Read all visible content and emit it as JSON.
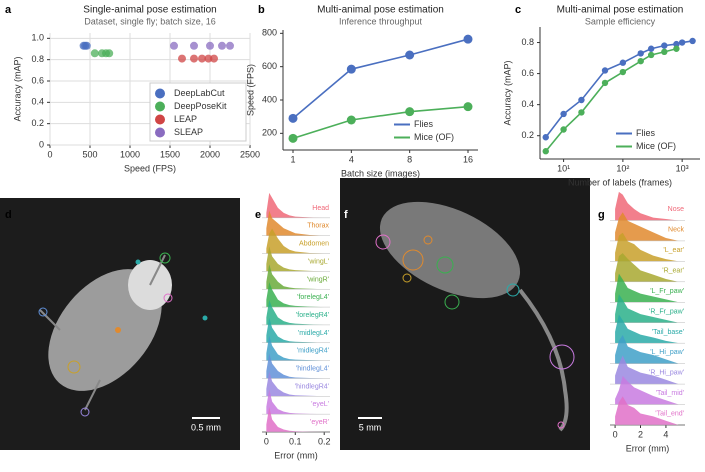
{
  "chart_data": [
    {
      "panel": "a",
      "type": "scatter",
      "title": "Single-animal pose estimation",
      "subtitle": "Dataset, single fly; batch size, 16",
      "x_label": "Speed (FPS)",
      "y_label": "Accuracy (mAP)",
      "xlim": [
        0,
        2500
      ],
      "xticks": [
        0,
        500,
        1000,
        1500,
        2000,
        2500
      ],
      "ylim": [
        0,
        1.05
      ],
      "yticks": [
        0,
        0.2,
        0.4,
        0.6,
        0.8,
        {
          "value": 1,
          "label": "1.0"
        }
      ],
      "grid": true,
      "legend": "lower right",
      "series": [
        {
          "name": "DeepLabCut",
          "color": "#4a6fc0",
          "x": [
            420,
            440,
            460
          ],
          "y": [
            0.93,
            0.93,
            0.93
          ]
        },
        {
          "name": "DeepPoseKit",
          "color": "#4caf5a",
          "x": [
            560,
            650,
            700,
            740
          ],
          "y": [
            0.86,
            0.86,
            0.86,
            0.86
          ]
        },
        {
          "name": "LEAP",
          "color": "#d04545",
          "x": [
            1650,
            1800,
            1900,
            1980,
            2050
          ],
          "y": [
            0.81,
            0.81,
            0.81,
            0.81,
            0.81
          ]
        },
        {
          "name": "SLEAP",
          "color": "#8a6cc0",
          "x": [
            1550,
            1800,
            2000,
            2150,
            2250
          ],
          "y": [
            0.93,
            0.93,
            0.93,
            0.93,
            0.93
          ]
        }
      ]
    },
    {
      "panel": "b",
      "type": "line",
      "title": "Multi-animal pose estimation",
      "subtitle": "Inference throughput",
      "x_label": "Batch size (images)",
      "y_label": "Speed (FPS)",
      "categories": [
        "1",
        "4",
        "8",
        "16"
      ],
      "ylim": [
        100,
        820
      ],
      "yticks": [
        200,
        400,
        600,
        800
      ],
      "legend": "lower right",
      "series": [
        {
          "name": "Flies",
          "color": "#4a6fc0",
          "values": [
            290,
            585,
            670,
            765
          ]
        },
        {
          "name": "Mice (OF)",
          "color": "#4caf5a",
          "values": [
            170,
            280,
            330,
            360
          ]
        }
      ]
    },
    {
      "panel": "c",
      "type": "line",
      "title": "Multi-animal pose estimation",
      "subtitle": "Sample efficiency",
      "x_label": "Number of labels (frames)",
      "y_label": "Accuracy (mAP)",
      "xlog": true,
      "xlim": [
        4,
        2000
      ],
      "xticks": [
        {
          "value": 10,
          "label": "10¹"
        },
        {
          "value": 100,
          "label": "10²"
        },
        {
          "value": 1000,
          "label": "10³"
        }
      ],
      "ylim": [
        0.05,
        0.9
      ],
      "yticks": [
        0.2,
        0.4,
        0.6,
        0.8
      ],
      "legend": "lower right",
      "series": [
        {
          "name": "Flies",
          "color": "#4a6fc0",
          "x": [
            5,
            10,
            20,
            50,
            100,
            200,
            300,
            500,
            800,
            1000,
            1500
          ],
          "values": [
            0.19,
            0.34,
            0.43,
            0.62,
            0.67,
            0.73,
            0.76,
            0.78,
            0.79,
            0.8,
            0.81
          ]
        },
        {
          "name": "Mice (OF)",
          "color": "#4caf5a",
          "x": [
            5,
            10,
            20,
            50,
            100,
            200,
            300,
            500,
            800
          ],
          "values": [
            0.1,
            0.24,
            0.35,
            0.54,
            0.61,
            0.68,
            0.72,
            0.74,
            0.76
          ]
        }
      ]
    },
    {
      "panel": "e",
      "type": "ridgeline",
      "x_label": "Error (mm)",
      "xlim": [
        -0.015,
        0.22
      ],
      "xticks": [
        0,
        0.1,
        0.2
      ],
      "x": [
        0,
        0.01,
        0.02,
        0.04,
        0.06,
        0.08,
        0.1,
        0.15,
        0.2
      ],
      "series": [
        {
          "name": "Head",
          "color": "#f06878",
          "values": [
            0.2,
            1,
            0.8,
            0.4,
            0.2,
            0.1,
            0.05,
            0.02,
            0
          ]
        },
        {
          "name": "Thorax",
          "color": "#e08a2e",
          "values": [
            0.3,
            1,
            0.7,
            0.5,
            0.3,
            0.2,
            0.1,
            0.03,
            0
          ]
        },
        {
          "name": "Abdomen",
          "color": "#c8a02a",
          "values": [
            0.2,
            0.8,
            1,
            0.6,
            0.3,
            0.15,
            0.08,
            0.02,
            0
          ]
        },
        {
          "name": "'wingL'",
          "color": "#a8a830",
          "values": [
            0.3,
            1,
            0.6,
            0.3,
            0.15,
            0.08,
            0.05,
            0.02,
            0
          ]
        },
        {
          "name": "'wingR'",
          "color": "#6aaa3a",
          "values": [
            0.3,
            1,
            0.6,
            0.3,
            0.12,
            0.07,
            0.04,
            0.02,
            0
          ]
        },
        {
          "name": "'forelegL4'",
          "color": "#3ab050",
          "values": [
            0.3,
            1,
            0.7,
            0.3,
            0.15,
            0.08,
            0.05,
            0.02,
            0
          ]
        },
        {
          "name": "'forelegR4'",
          "color": "#2ab08a",
          "values": [
            0.3,
            1,
            0.7,
            0.3,
            0.15,
            0.08,
            0.05,
            0.02,
            0
          ]
        },
        {
          "name": "'midlegL4'",
          "color": "#2aaaa8",
          "values": [
            0.3,
            1,
            0.6,
            0.25,
            0.12,
            0.06,
            0.04,
            0.02,
            0
          ]
        },
        {
          "name": "'midlegR4'",
          "color": "#40a0c8",
          "values": [
            0.3,
            1,
            0.6,
            0.25,
            0.12,
            0.06,
            0.04,
            0.02,
            0
          ]
        },
        {
          "name": "'hindlegL4'",
          "color": "#6090d8",
          "values": [
            0.3,
            1,
            0.6,
            0.3,
            0.15,
            0.07,
            0.04,
            0.02,
            0
          ]
        },
        {
          "name": "'hindlegR4'",
          "color": "#9a88e0",
          "values": [
            0.3,
            1,
            0.6,
            0.3,
            0.15,
            0.07,
            0.04,
            0.02,
            0
          ]
        },
        {
          "name": "'eyeL'",
          "color": "#c87ae0",
          "values": [
            0.3,
            1,
            0.5,
            0.2,
            0.1,
            0.05,
            0.03,
            0.01,
            0
          ]
        },
        {
          "name": "'eyeR'",
          "color": "#e070c8",
          "values": [
            0.3,
            1,
            0.5,
            0.2,
            0.1,
            0.05,
            0.03,
            0.01,
            0
          ]
        }
      ]
    },
    {
      "panel": "g",
      "type": "ridgeline",
      "x_label": "Error (mm)",
      "xlim": [
        -0.4,
        5.5
      ],
      "xticks": [
        0,
        2,
        4
      ],
      "x": [
        0,
        0.3,
        0.6,
        1,
        1.5,
        2,
        3,
        4,
        5
      ],
      "series": [
        {
          "name": "Nose",
          "color": "#f06878",
          "values": [
            0.4,
            1,
            0.9,
            0.6,
            0.4,
            0.25,
            0.1,
            0.05,
            0
          ]
        },
        {
          "name": "Neck",
          "color": "#e08a2e",
          "values": [
            0.3,
            0.8,
            1,
            0.7,
            0.6,
            0.5,
            0.3,
            0.1,
            0
          ]
        },
        {
          "name": "'L_ear'",
          "color": "#c8a02a",
          "values": [
            0.3,
            0.9,
            1,
            0.7,
            0.6,
            0.4,
            0.2,
            0.08,
            0
          ]
        },
        {
          "name": "'R_ear'",
          "color": "#a8a830",
          "values": [
            0.3,
            0.9,
            1,
            0.8,
            0.6,
            0.4,
            0.25,
            0.1,
            0
          ]
        },
        {
          "name": "'L_Fr_paw'",
          "color": "#3ab050",
          "values": [
            0.3,
            1,
            0.8,
            0.5,
            0.4,
            0.3,
            0.2,
            0.1,
            0
          ]
        },
        {
          "name": "'R_Fr_paw'",
          "color": "#2ab08a",
          "values": [
            0.3,
            1,
            0.8,
            0.5,
            0.4,
            0.3,
            0.2,
            0.1,
            0
          ]
        },
        {
          "name": "'Tail_base'",
          "color": "#2aaaa8",
          "values": [
            0.4,
            1,
            0.8,
            0.5,
            0.4,
            0.3,
            0.2,
            0.08,
            0
          ]
        },
        {
          "name": "'L_Hi_paw'",
          "color": "#40a0c8",
          "values": [
            0.3,
            0.8,
            1,
            0.6,
            0.5,
            0.4,
            0.3,
            0.15,
            0
          ]
        },
        {
          "name": "'R_Hi_paw'",
          "color": "#9a88e0",
          "values": [
            0.3,
            0.7,
            1,
            0.6,
            0.5,
            0.4,
            0.3,
            0.15,
            0
          ]
        },
        {
          "name": "'Tail_mid'",
          "color": "#c87ae0",
          "values": [
            0.2,
            0.5,
            1,
            0.8,
            0.6,
            0.5,
            0.3,
            0.15,
            0
          ]
        },
        {
          "name": "'Tail_end'",
          "color": "#e070c8",
          "values": [
            0.3,
            0.8,
            1,
            0.7,
            0.6,
            0.4,
            0.3,
            0.15,
            0
          ]
        }
      ]
    }
  ],
  "images": [
    {
      "panel": "d",
      "scale_bar": "0.5 mm"
    },
    {
      "panel": "f",
      "scale_bar": "5 mm"
    }
  ]
}
